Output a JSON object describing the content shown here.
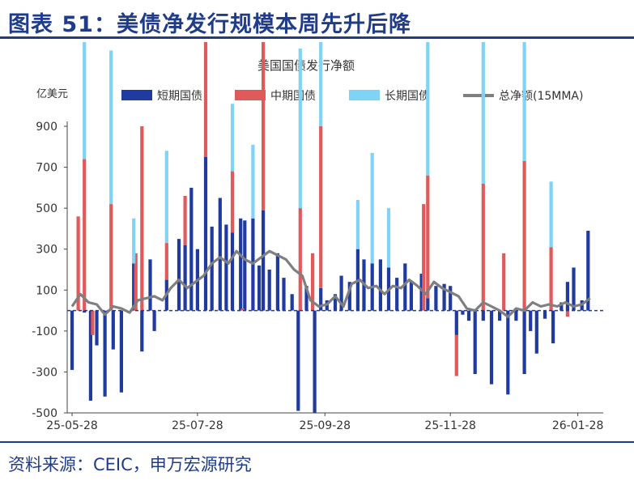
{
  "figure_title": "图表 51：美债净发行规模本周先升后降",
  "source_note": "资料来源：CEIC，申万宏源研究",
  "colors": {
    "brand": "#1f3c88",
    "short_term": "#1f3aa0",
    "mid_term": "#e05a5a",
    "long_term": "#7fd3f5",
    "net_ma": "#7f7f7f"
  },
  "chart_data": {
    "type": "bar",
    "stacked": true,
    "title": "美国国债发行净额",
    "ylabel": "亿美元",
    "ylim": [
      -500,
      900
    ],
    "yticks": [
      -500,
      -300,
      -100,
      100,
      300,
      500,
      700,
      900
    ],
    "xtick_labels": [
      "25-05-28",
      "25-07-28",
      "25-09-28",
      "25-11-28",
      "26-01-28"
    ],
    "xtick_positions": [
      0,
      61,
      123,
      184,
      246
    ],
    "legend": [
      "短期国债",
      "中期国债",
      "长期国债",
      "总净额(15MMA)"
    ],
    "legend_position": "top",
    "grid": false,
    "series": [
      {
        "name": "短期国债",
        "kind": "bar",
        "points": [
          [
            0,
            -290
          ],
          [
            6,
            -10
          ],
          [
            9,
            -440
          ],
          [
            12,
            -170
          ],
          [
            16,
            -420
          ],
          [
            20,
            -190
          ],
          [
            24,
            -400
          ],
          [
            30,
            230
          ],
          [
            34,
            -200
          ],
          [
            38,
            250
          ],
          [
            40,
            -100
          ],
          [
            46,
            150
          ],
          [
            52,
            350
          ],
          [
            55,
            320
          ],
          [
            58,
            600
          ],
          [
            61,
            300
          ],
          [
            65,
            750
          ],
          [
            68,
            410
          ],
          [
            72,
            550
          ],
          [
            75,
            420
          ],
          [
            78,
            380
          ],
          [
            82,
            450
          ],
          [
            84,
            440
          ],
          [
            88,
            450
          ],
          [
            91,
            220
          ],
          [
            93,
            490
          ],
          [
            96,
            200
          ],
          [
            100,
            280
          ],
          [
            103,
            160
          ],
          [
            107,
            80
          ],
          [
            110,
            -490
          ],
          [
            114,
            120
          ],
          [
            118,
            -500
          ],
          [
            121,
            110
          ],
          [
            124,
            50
          ],
          [
            128,
            80
          ],
          [
            131,
            170
          ],
          [
            135,
            140
          ],
          [
            139,
            300
          ],
          [
            142,
            250
          ],
          [
            146,
            230
          ],
          [
            150,
            250
          ],
          [
            154,
            210
          ],
          [
            158,
            160
          ],
          [
            162,
            230
          ],
          [
            165,
            140
          ],
          [
            170,
            180
          ],
          [
            173,
            60
          ],
          [
            177,
            120
          ],
          [
            181,
            130
          ],
          [
            184,
            120
          ],
          [
            187,
            -120
          ],
          [
            190,
            -20
          ],
          [
            193,
            -50
          ],
          [
            196,
            -310
          ],
          [
            200,
            -50
          ],
          [
            204,
            -360
          ],
          [
            208,
            -50
          ],
          [
            212,
            -410
          ],
          [
            216,
            -50
          ],
          [
            220,
            -310
          ],
          [
            223,
            -100
          ],
          [
            226,
            -210
          ],
          [
            230,
            -40
          ],
          [
            234,
            -160
          ],
          [
            238,
            40
          ],
          [
            241,
            140
          ],
          [
            244,
            210
          ],
          [
            248,
            50
          ],
          [
            251,
            390
          ]
        ]
      },
      {
        "name": "中期国债",
        "kind": "bar",
        "points": [
          [
            3,
            460
          ],
          [
            6,
            740
          ],
          [
            10,
            -120
          ],
          [
            19,
            520
          ],
          [
            31,
            280
          ],
          [
            34,
            900
          ],
          [
            46,
            180
          ],
          [
            55,
            240
          ],
          [
            65,
            900
          ],
          [
            78,
            300
          ],
          [
            83,
            10
          ],
          [
            93,
            900
          ],
          [
            111,
            500
          ],
          [
            117,
            280
          ],
          [
            121,
            790
          ],
          [
            171,
            520
          ],
          [
            173,
            600
          ],
          [
            187,
            -200
          ],
          [
            200,
            620
          ],
          [
            210,
            280
          ],
          [
            220,
            730
          ],
          [
            233,
            310
          ],
          [
            241,
            -30
          ]
        ]
      },
      {
        "name": "长期国债",
        "kind": "bar",
        "points": [
          [
            6,
            890
          ],
          [
            19,
            750
          ],
          [
            30,
            220
          ],
          [
            46,
            450
          ],
          [
            65,
            450
          ],
          [
            78,
            330
          ],
          [
            88,
            360
          ],
          [
            111,
            780
          ],
          [
            121,
            900
          ],
          [
            139,
            240
          ],
          [
            146,
            540
          ],
          [
            154,
            290
          ],
          [
            173,
            820
          ],
          [
            200,
            790
          ],
          [
            220,
            880
          ],
          [
            233,
            320
          ]
        ]
      },
      {
        "name": "总净额(15MMA)",
        "kind": "line",
        "points": [
          [
            0,
            20
          ],
          [
            4,
            80
          ],
          [
            8,
            40
          ],
          [
            12,
            30
          ],
          [
            16,
            -20
          ],
          [
            20,
            20
          ],
          [
            24,
            10
          ],
          [
            28,
            -10
          ],
          [
            32,
            50
          ],
          [
            36,
            60
          ],
          [
            40,
            70
          ],
          [
            44,
            50
          ],
          [
            48,
            110
          ],
          [
            52,
            150
          ],
          [
            56,
            110
          ],
          [
            60,
            140
          ],
          [
            64,
            170
          ],
          [
            68,
            230
          ],
          [
            72,
            260
          ],
          [
            76,
            230
          ],
          [
            80,
            290
          ],
          [
            84,
            250
          ],
          [
            88,
            230
          ],
          [
            92,
            260
          ],
          [
            96,
            290
          ],
          [
            100,
            270
          ],
          [
            104,
            250
          ],
          [
            108,
            200
          ],
          [
            112,
            170
          ],
          [
            116,
            50
          ],
          [
            120,
            20
          ],
          [
            124,
            30
          ],
          [
            128,
            70
          ],
          [
            132,
            20
          ],
          [
            136,
            130
          ],
          [
            140,
            150
          ],
          [
            144,
            110
          ],
          [
            148,
            120
          ],
          [
            152,
            80
          ],
          [
            156,
            120
          ],
          [
            160,
            110
          ],
          [
            164,
            150
          ],
          [
            168,
            120
          ],
          [
            172,
            80
          ],
          [
            176,
            140
          ],
          [
            180,
            110
          ],
          [
            184,
            90
          ],
          [
            188,
            70
          ],
          [
            192,
            10
          ],
          [
            196,
            0
          ],
          [
            200,
            40
          ],
          [
            204,
            20
          ],
          [
            208,
            0
          ],
          [
            212,
            -30
          ],
          [
            216,
            10
          ],
          [
            220,
            0
          ],
          [
            224,
            40
          ],
          [
            228,
            20
          ],
          [
            232,
            30
          ],
          [
            236,
            20
          ],
          [
            240,
            40
          ],
          [
            244,
            20
          ],
          [
            248,
            30
          ],
          [
            252,
            60
          ]
        ]
      }
    ]
  }
}
